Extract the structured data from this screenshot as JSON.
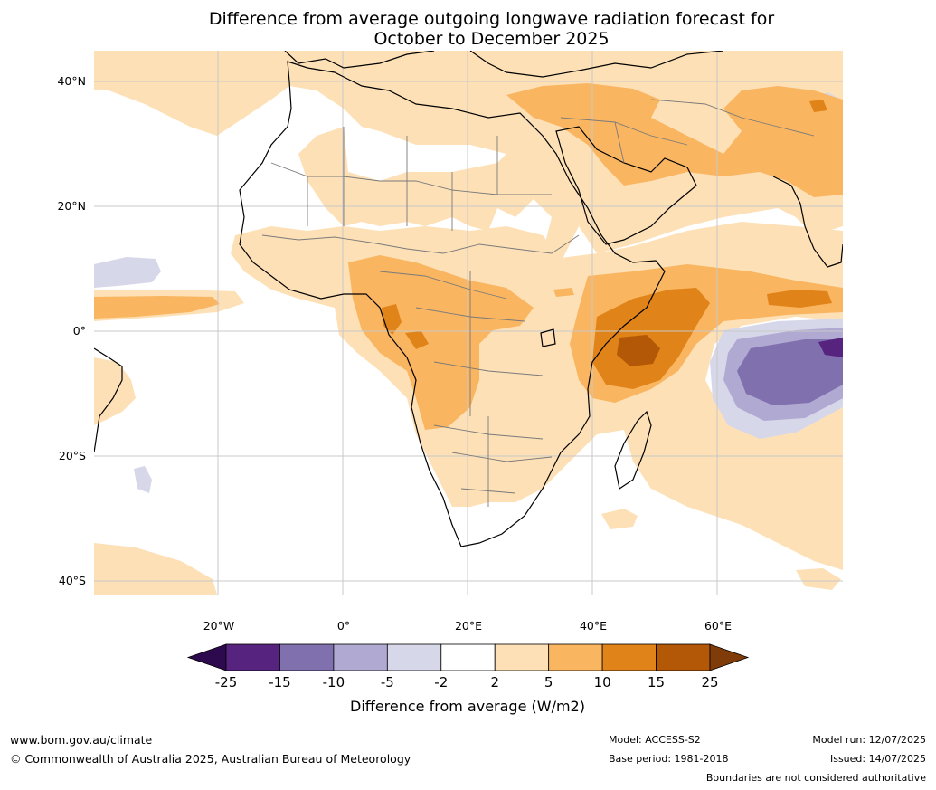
{
  "title_line1": "Difference from average outgoing longwave radiation forecast for",
  "title_line2": "October to December 2025",
  "lat_labels": [
    "40°N",
    "20°N",
    "0°",
    "20°S",
    "40°S"
  ],
  "lon_labels": [
    "20°W",
    "0°",
    "20°E",
    "40°E",
    "60°E"
  ],
  "colorbar": {
    "title": "Difference from average (W/m2)",
    "ticks": [
      "-25",
      "-15",
      "-10",
      "-5",
      "-2",
      "2",
      "5",
      "10",
      "15",
      "25"
    ],
    "colors": [
      "#2d0a4e",
      "#56237f",
      "#8070ad",
      "#b0a9d2",
      "#d7d7ea",
      "#ffffff",
      "#fde0b6",
      "#fab561",
      "#e08318",
      "#b35806",
      "#7f3b08"
    ]
  },
  "footer": {
    "url": "www.bom.gov.au/climate",
    "copyright": "© Commonwealth of Australia 2025, Australian Bureau of Meteorology",
    "model": "Model: ACCESS-S2",
    "base_period": "Base period: 1981-2018",
    "model_run": "Model run: 12/07/2025",
    "issued": "Issued: 14/07/2025",
    "disclaimer": "Boundaries are not considered authoritative"
  }
}
